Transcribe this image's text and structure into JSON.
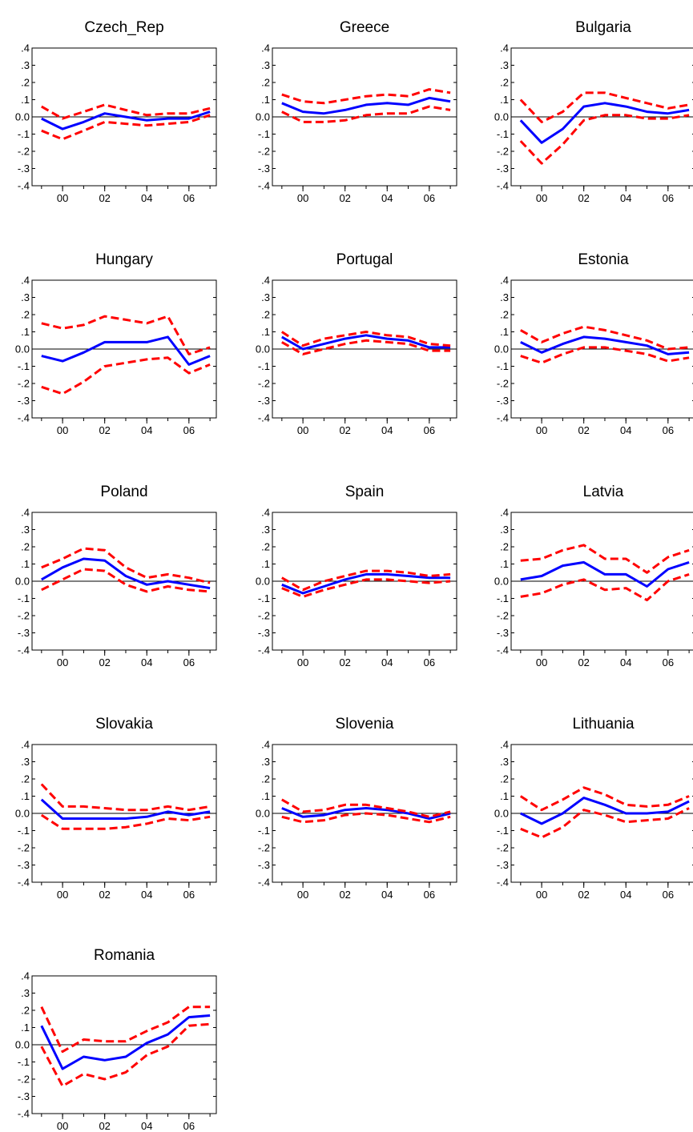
{
  "chart_data": [
    {
      "type": "line",
      "title": "Czech_Rep",
      "ylim": [
        -0.4,
        0.4
      ],
      "yticks": [
        ".4",
        ".3",
        ".2",
        ".1",
        "0.0",
        "-.1",
        "-.2",
        "-.3",
        "-.4"
      ],
      "xticks": [
        "00",
        "02",
        "04",
        "06"
      ],
      "x": [
        1999,
        2000,
        2001,
        2002,
        2003,
        2004,
        2005,
        2006,
        2007
      ],
      "series": [
        {
          "role": "estimate",
          "color": "#0000ff",
          "dashed": false,
          "values": [
            -0.01,
            -0.07,
            -0.03,
            0.02,
            0.0,
            -0.02,
            -0.01,
            -0.01,
            0.03
          ]
        },
        {
          "role": "upper",
          "color": "#ff0000",
          "dashed": true,
          "values": [
            0.06,
            -0.01,
            0.03,
            0.07,
            0.04,
            0.01,
            0.02,
            0.02,
            0.05
          ]
        },
        {
          "role": "lower",
          "color": "#ff0000",
          "dashed": true,
          "values": [
            -0.08,
            -0.13,
            -0.08,
            -0.03,
            -0.04,
            -0.05,
            -0.04,
            -0.03,
            0.01
          ]
        }
      ]
    },
    {
      "type": "line",
      "title": "Greece",
      "ylim": [
        -0.4,
        0.4
      ],
      "yticks": [
        ".4",
        ".3",
        ".2",
        ".1",
        "0.0",
        "-.1",
        "-.2",
        "-.3",
        "-.4"
      ],
      "xticks": [
        "00",
        "02",
        "04",
        "06"
      ],
      "x": [
        1999,
        2000,
        2001,
        2002,
        2003,
        2004,
        2005,
        2006,
        2007
      ],
      "series": [
        {
          "role": "estimate",
          "color": "#0000ff",
          "dashed": false,
          "values": [
            0.08,
            0.03,
            0.02,
            0.04,
            0.07,
            0.08,
            0.07,
            0.11,
            0.09
          ]
        },
        {
          "role": "upper",
          "color": "#ff0000",
          "dashed": true,
          "values": [
            0.13,
            0.09,
            0.08,
            0.1,
            0.12,
            0.13,
            0.12,
            0.16,
            0.14
          ]
        },
        {
          "role": "lower",
          "color": "#ff0000",
          "dashed": true,
          "values": [
            0.03,
            -0.03,
            -0.03,
            -0.02,
            0.01,
            0.02,
            0.02,
            0.06,
            0.04
          ]
        }
      ]
    },
    {
      "type": "line",
      "title": "Bulgaria",
      "ylim": [
        -0.4,
        0.4
      ],
      "yticks": [
        ".4",
        ".3",
        ".2",
        ".1",
        "0.0",
        "-.1",
        "-.2",
        "-.3",
        "-.4"
      ],
      "xticks": [
        "00",
        "02",
        "04",
        "06"
      ],
      "x": [
        1999,
        2000,
        2001,
        2002,
        2003,
        2004,
        2005,
        2006,
        2007
      ],
      "series": [
        {
          "role": "estimate",
          "color": "#0000ff",
          "dashed": false,
          "values": [
            -0.02,
            -0.15,
            -0.07,
            0.06,
            0.08,
            0.06,
            0.03,
            0.02,
            0.04
          ]
        },
        {
          "role": "upper",
          "color": "#ff0000",
          "dashed": true,
          "values": [
            0.1,
            -0.03,
            0.03,
            0.14,
            0.14,
            0.11,
            0.08,
            0.05,
            0.07
          ]
        },
        {
          "role": "lower",
          "color": "#ff0000",
          "dashed": true,
          "values": [
            -0.14,
            -0.27,
            -0.16,
            -0.02,
            0.01,
            0.01,
            -0.01,
            -0.01,
            0.01
          ]
        }
      ]
    },
    {
      "type": "line",
      "title": "Hungary",
      "ylim": [
        -0.4,
        0.4
      ],
      "yticks": [
        ".4",
        ".3",
        ".2",
        ".1",
        "0.0",
        "-.1",
        "-.2",
        "-.3",
        "-.4"
      ],
      "xticks": [
        "00",
        "02",
        "04",
        "06"
      ],
      "x": [
        1999,
        2000,
        2001,
        2002,
        2003,
        2004,
        2005,
        2006,
        2007
      ],
      "series": [
        {
          "role": "estimate",
          "color": "#0000ff",
          "dashed": false,
          "values": [
            -0.04,
            -0.07,
            -0.02,
            0.04,
            0.04,
            0.04,
            0.07,
            -0.09,
            -0.04
          ]
        },
        {
          "role": "upper",
          "color": "#ff0000",
          "dashed": true,
          "values": [
            0.15,
            0.12,
            0.14,
            0.19,
            0.17,
            0.15,
            0.19,
            -0.03,
            0.01
          ]
        },
        {
          "role": "lower",
          "color": "#ff0000",
          "dashed": true,
          "values": [
            -0.22,
            -0.26,
            -0.19,
            -0.1,
            -0.08,
            -0.06,
            -0.05,
            -0.14,
            -0.09
          ]
        }
      ]
    },
    {
      "type": "line",
      "title": "Portugal",
      "ylim": [
        -0.4,
        0.4
      ],
      "yticks": [
        ".4",
        ".3",
        ".2",
        ".1",
        "0.0",
        "-.1",
        "-.2",
        "-.3",
        "-.4"
      ],
      "xticks": [
        "00",
        "02",
        "04",
        "06"
      ],
      "x": [
        1999,
        2000,
        2001,
        2002,
        2003,
        2004,
        2005,
        2006,
        2007
      ],
      "series": [
        {
          "role": "estimate",
          "color": "#0000ff",
          "dashed": false,
          "values": [
            0.07,
            0.0,
            0.03,
            0.06,
            0.08,
            0.06,
            0.05,
            0.01,
            0.01
          ]
        },
        {
          "role": "upper",
          "color": "#ff0000",
          "dashed": true,
          "values": [
            0.1,
            0.02,
            0.06,
            0.08,
            0.1,
            0.08,
            0.07,
            0.03,
            0.02
          ]
        },
        {
          "role": "lower",
          "color": "#ff0000",
          "dashed": true,
          "values": [
            0.04,
            -0.03,
            0.0,
            0.03,
            0.05,
            0.04,
            0.03,
            -0.01,
            -0.01
          ]
        }
      ]
    },
    {
      "type": "line",
      "title": "Estonia",
      "ylim": [
        -0.4,
        0.4
      ],
      "yticks": [
        ".4",
        ".3",
        ".2",
        ".1",
        "0.0",
        "-.1",
        "-.2",
        "-.3",
        "-.4"
      ],
      "xticks": [
        "00",
        "02",
        "04",
        "06"
      ],
      "x": [
        1999,
        2000,
        2001,
        2002,
        2003,
        2004,
        2005,
        2006,
        2007
      ],
      "series": [
        {
          "role": "estimate",
          "color": "#0000ff",
          "dashed": false,
          "values": [
            0.04,
            -0.02,
            0.03,
            0.07,
            0.06,
            0.04,
            0.02,
            -0.03,
            -0.02
          ]
        },
        {
          "role": "upper",
          "color": "#ff0000",
          "dashed": true,
          "values": [
            0.11,
            0.04,
            0.09,
            0.13,
            0.11,
            0.08,
            0.05,
            0.0,
            0.01
          ]
        },
        {
          "role": "lower",
          "color": "#ff0000",
          "dashed": true,
          "values": [
            -0.04,
            -0.08,
            -0.03,
            0.01,
            0.01,
            -0.01,
            -0.03,
            -0.07,
            -0.05
          ]
        }
      ]
    },
    {
      "type": "line",
      "title": "Poland",
      "ylim": [
        -0.4,
        0.4
      ],
      "yticks": [
        ".4",
        ".3",
        ".2",
        ".1",
        "0.0",
        "-.1",
        "-.2",
        "-.3",
        "-.4"
      ],
      "xticks": [
        "00",
        "02",
        "04",
        "06"
      ],
      "x": [
        1999,
        2000,
        2001,
        2002,
        2003,
        2004,
        2005,
        2006,
        2007
      ],
      "series": [
        {
          "role": "estimate",
          "color": "#0000ff",
          "dashed": false,
          "values": [
            0.01,
            0.08,
            0.13,
            0.12,
            0.03,
            -0.02,
            0.0,
            -0.02,
            -0.04
          ]
        },
        {
          "role": "upper",
          "color": "#ff0000",
          "dashed": true,
          "values": [
            0.08,
            0.13,
            0.19,
            0.18,
            0.08,
            0.02,
            0.04,
            0.02,
            -0.01
          ]
        },
        {
          "role": "lower",
          "color": "#ff0000",
          "dashed": true,
          "values": [
            -0.05,
            0.01,
            0.07,
            0.06,
            -0.02,
            -0.06,
            -0.03,
            -0.05,
            -0.06
          ]
        }
      ]
    },
    {
      "type": "line",
      "title": "Spain",
      "ylim": [
        -0.4,
        0.4
      ],
      "yticks": [
        ".4",
        ".3",
        ".2",
        ".1",
        "0.0",
        "-.1",
        "-.2",
        "-.3",
        "-.4"
      ],
      "xticks": [
        "00",
        "02",
        "04",
        "06"
      ],
      "x": [
        1999,
        2000,
        2001,
        2002,
        2003,
        2004,
        2005,
        2006,
        2007
      ],
      "series": [
        {
          "role": "estimate",
          "color": "#0000ff",
          "dashed": false,
          "values": [
            -0.02,
            -0.07,
            -0.03,
            0.01,
            0.04,
            0.04,
            0.03,
            0.02,
            0.02
          ]
        },
        {
          "role": "upper",
          "color": "#ff0000",
          "dashed": true,
          "values": [
            0.02,
            -0.05,
            0.0,
            0.03,
            0.06,
            0.06,
            0.05,
            0.03,
            0.04
          ]
        },
        {
          "role": "lower",
          "color": "#ff0000",
          "dashed": true,
          "values": [
            -0.04,
            -0.09,
            -0.05,
            -0.02,
            0.01,
            0.01,
            0.0,
            -0.01,
            0.0
          ]
        }
      ]
    },
    {
      "type": "line",
      "title": "Latvia",
      "ylim": [
        -0.4,
        0.4
      ],
      "yticks": [
        ".4",
        ".3",
        ".2",
        ".1",
        "0.0",
        "-.1",
        "-.2",
        "-.3",
        "-.4"
      ],
      "xticks": [
        "00",
        "02",
        "04",
        "06"
      ],
      "x": [
        1999,
        2000,
        2001,
        2002,
        2003,
        2004,
        2005,
        2006,
        2007
      ],
      "series": [
        {
          "role": "estimate",
          "color": "#0000ff",
          "dashed": false,
          "values": [
            0.01,
            0.03,
            0.09,
            0.11,
            0.04,
            0.04,
            -0.03,
            0.07,
            0.11
          ]
        },
        {
          "role": "upper",
          "color": "#ff0000",
          "dashed": true,
          "values": [
            0.12,
            0.13,
            0.18,
            0.21,
            0.13,
            0.13,
            0.05,
            0.14,
            0.18
          ]
        },
        {
          "role": "lower",
          "color": "#ff0000",
          "dashed": true,
          "values": [
            -0.09,
            -0.07,
            -0.02,
            0.01,
            -0.05,
            -0.04,
            -0.11,
            0.0,
            0.04
          ]
        }
      ]
    },
    {
      "type": "line",
      "title": "Slovakia",
      "ylim": [
        -0.4,
        0.4
      ],
      "yticks": [
        ".4",
        ".3",
        ".2",
        ".1",
        "0.0",
        "-.1",
        "-.2",
        "-.3",
        "-.4"
      ],
      "xticks": [
        "00",
        "02",
        "04",
        "06"
      ],
      "x": [
        1999,
        2000,
        2001,
        2002,
        2003,
        2004,
        2005,
        2006,
        2007
      ],
      "series": [
        {
          "role": "estimate",
          "color": "#0000ff",
          "dashed": false,
          "values": [
            0.08,
            -0.03,
            -0.03,
            -0.03,
            -0.03,
            -0.02,
            0.01,
            -0.01,
            0.01
          ]
        },
        {
          "role": "upper",
          "color": "#ff0000",
          "dashed": true,
          "values": [
            0.17,
            0.04,
            0.04,
            0.03,
            0.02,
            0.02,
            0.04,
            0.02,
            0.04
          ]
        },
        {
          "role": "lower",
          "color": "#ff0000",
          "dashed": true,
          "values": [
            -0.01,
            -0.09,
            -0.09,
            -0.09,
            -0.08,
            -0.06,
            -0.03,
            -0.04,
            -0.02
          ]
        }
      ]
    },
    {
      "type": "line",
      "title": "Slovenia",
      "ylim": [
        -0.4,
        0.4
      ],
      "yticks": [
        ".4",
        ".3",
        ".2",
        ".1",
        "0.0",
        "-.1",
        "-.2",
        "-.3",
        "-.4"
      ],
      "xticks": [
        "00",
        "02",
        "04",
        "06"
      ],
      "x": [
        1999,
        2000,
        2001,
        2002,
        2003,
        2004,
        2005,
        2006,
        2007
      ],
      "series": [
        {
          "role": "estimate",
          "color": "#0000ff",
          "dashed": false,
          "values": [
            0.03,
            -0.02,
            -0.01,
            0.02,
            0.03,
            0.02,
            0.0,
            -0.03,
            0.0
          ]
        },
        {
          "role": "upper",
          "color": "#ff0000",
          "dashed": true,
          "values": [
            0.08,
            0.01,
            0.02,
            0.05,
            0.05,
            0.03,
            0.01,
            -0.02,
            0.01
          ]
        },
        {
          "role": "lower",
          "color": "#ff0000",
          "dashed": true,
          "values": [
            -0.02,
            -0.05,
            -0.04,
            -0.01,
            0.0,
            -0.01,
            -0.03,
            -0.05,
            -0.02
          ]
        }
      ]
    },
    {
      "type": "line",
      "title": "Lithuania",
      "ylim": [
        -0.4,
        0.4
      ],
      "yticks": [
        ".4",
        ".3",
        ".2",
        ".1",
        "0.0",
        "-.1",
        "-.2",
        "-.3",
        "-.4"
      ],
      "xticks": [
        "00",
        "02",
        "04",
        "06"
      ],
      "x": [
        1999,
        2000,
        2001,
        2002,
        2003,
        2004,
        2005,
        2006,
        2007
      ],
      "series": [
        {
          "role": "estimate",
          "color": "#0000ff",
          "dashed": false,
          "values": [
            0.0,
            -0.06,
            0.0,
            0.09,
            0.05,
            0.0,
            0.0,
            0.01,
            0.07
          ]
        },
        {
          "role": "upper",
          "color": "#ff0000",
          "dashed": true,
          "values": [
            0.1,
            0.02,
            0.08,
            0.15,
            0.11,
            0.05,
            0.04,
            0.05,
            0.1
          ]
        },
        {
          "role": "lower",
          "color": "#ff0000",
          "dashed": true,
          "values": [
            -0.09,
            -0.14,
            -0.08,
            0.02,
            -0.01,
            -0.05,
            -0.04,
            -0.03,
            0.03
          ]
        }
      ]
    },
    {
      "type": "line",
      "title": "Romania",
      "ylim": [
        -0.4,
        0.4
      ],
      "yticks": [
        ".4",
        ".3",
        ".2",
        ".1",
        "0.0",
        "-.1",
        "-.2",
        "-.3",
        "-.4"
      ],
      "xticks": [
        "00",
        "02",
        "04",
        "06"
      ],
      "x": [
        1999,
        2000,
        2001,
        2002,
        2003,
        2004,
        2005,
        2006,
        2007
      ],
      "series": [
        {
          "role": "estimate",
          "color": "#0000ff",
          "dashed": false,
          "values": [
            0.11,
            -0.14,
            -0.07,
            -0.09,
            -0.07,
            0.01,
            0.06,
            0.16,
            0.17
          ]
        },
        {
          "role": "upper",
          "color": "#ff0000",
          "dashed": true,
          "values": [
            0.22,
            -0.04,
            0.03,
            0.02,
            0.02,
            0.08,
            0.13,
            0.22,
            0.22
          ]
        },
        {
          "role": "lower",
          "color": "#ff0000",
          "dashed": true,
          "values": [
            -0.01,
            -0.24,
            -0.17,
            -0.2,
            -0.16,
            -0.06,
            -0.01,
            0.11,
            0.12
          ]
        }
      ]
    }
  ]
}
